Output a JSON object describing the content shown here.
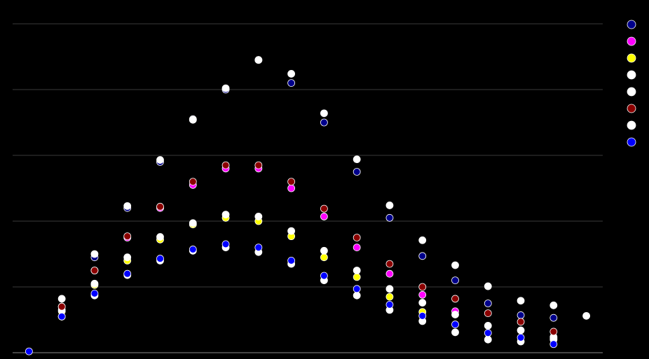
{
  "chart_data": {
    "type": "scatter",
    "title": "",
    "xlabel": "",
    "ylabel": "",
    "x": [
      0,
      1,
      2,
      3,
      4,
      5,
      6,
      7,
      8,
      9,
      10,
      11,
      12,
      13,
      14,
      15,
      16,
      17
    ],
    "xlim": [
      -0.5,
      17.5
    ],
    "ylim": [
      0,
      5
    ],
    "grid": true,
    "legend_position": "right",
    "series": [
      {
        "color": "#00008b",
        "values": [
          null,
          0.55,
          1.45,
          2.2,
          2.9,
          3.55,
          4.0,
          4.45,
          4.1,
          3.5,
          2.75,
          2.05,
          1.47,
          1.1,
          0.75,
          0.57,
          0.53,
          null
        ]
      },
      {
        "color": "#ff00ff",
        "values": [
          null,
          0.7,
          1.25,
          1.75,
          2.2,
          2.55,
          2.8,
          2.8,
          2.5,
          2.07,
          1.6,
          1.2,
          0.88,
          0.63,
          null,
          null,
          null,
          null
        ]
      },
      {
        "color": "#ffff00",
        "values": [
          null,
          0.63,
          1.03,
          1.4,
          1.72,
          1.95,
          2.05,
          2.0,
          1.77,
          1.45,
          1.15,
          0.85,
          0.62,
          null,
          null,
          null,
          0.22,
          null
        ]
      },
      {
        "color": "#ffffff",
        "values": [
          null,
          0.82,
          1.5,
          2.23,
          2.93,
          3.54,
          4.02,
          4.45,
          4.24,
          3.64,
          2.94,
          2.24,
          1.71,
          1.33,
          1.01,
          0.79,
          0.72,
          0.56
        ]
      },
      {
        "color": "#ffffff",
        "values": [
          null,
          0.65,
          1.05,
          1.45,
          1.76,
          1.97,
          2.1,
          2.07,
          1.85,
          1.55,
          1.25,
          0.97,
          0.76,
          0.58,
          0.41,
          0.34,
          0.24,
          null
        ]
      },
      {
        "color": "#8b0000",
        "values": [
          null,
          0.7,
          1.25,
          1.77,
          2.22,
          2.6,
          2.85,
          2.85,
          2.6,
          2.19,
          1.75,
          1.35,
          1.0,
          0.82,
          0.6,
          0.47,
          0.32,
          null
        ]
      },
      {
        "color": "#ffffff",
        "values": [
          null,
          0.55,
          0.87,
          1.18,
          1.4,
          1.55,
          1.6,
          1.53,
          1.35,
          1.1,
          0.87,
          0.65,
          0.48,
          0.31,
          0.2,
          0.17,
          0.2,
          null
        ]
      },
      {
        "color": "#0000ff",
        "values": [
          0.02,
          0.55,
          0.9,
          1.2,
          1.43,
          1.57,
          1.65,
          1.6,
          1.4,
          1.17,
          0.97,
          0.73,
          0.56,
          0.43,
          0.3,
          0.23,
          0.13,
          null
        ]
      }
    ]
  }
}
